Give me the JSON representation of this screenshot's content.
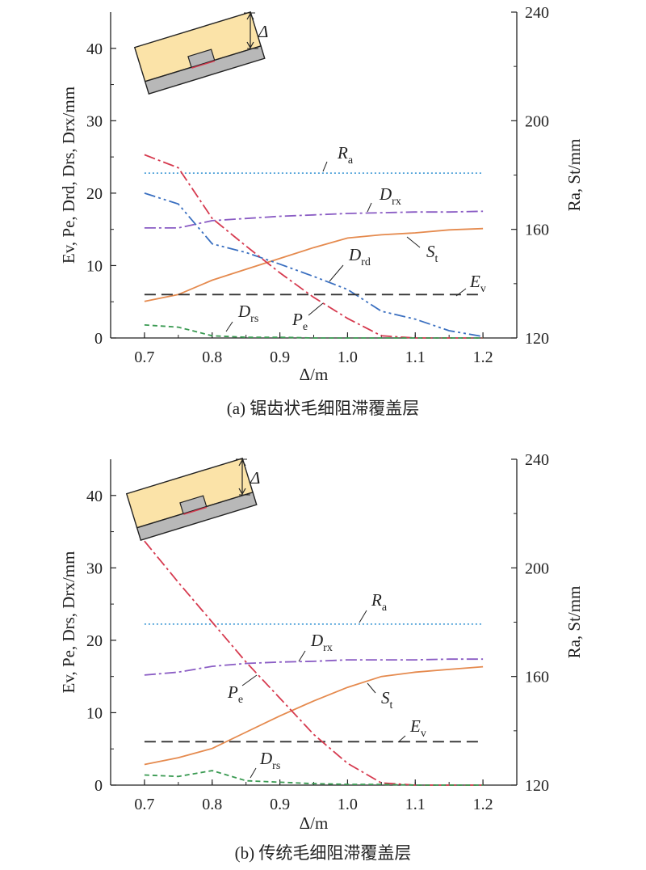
{
  "chart_data": [
    {
      "type": "line",
      "caption": "(a) 锯齿状毛细阻滞覆盖层",
      "xlabel": "Δ/m",
      "ylabel": "Ev, Pe, Drd, Drs, Drx/mm",
      "ylabel_right": "Ra, St/mm",
      "xlim": [
        0.65,
        1.25
      ],
      "ylim": [
        0,
        45
      ],
      "ylim_right": [
        120,
        240
      ],
      "x_ticks": [
        0.7,
        0.8,
        0.9,
        1.0,
        1.1,
        1.2
      ],
      "y_ticks": [
        0,
        10,
        20,
        30,
        40
      ],
      "y_ticks_right": [
        120,
        160,
        200,
        240
      ],
      "series": [
        {
          "name": "Ra",
          "axis": "right",
          "color": "#4a9fd8",
          "dash": "2,3",
          "x": [
            0.7,
            1.2
          ],
          "y": [
            180.7,
            180.7
          ]
        },
        {
          "name": "Drx",
          "axis": "left",
          "color": "#8a5cc4",
          "dash": "14,4,3,4",
          "x": [
            0.7,
            0.75,
            0.8,
            0.85,
            0.9,
            0.95,
            1.0,
            1.05,
            1.1,
            1.15,
            1.2
          ],
          "y": [
            15.2,
            15.2,
            16.2,
            16.5,
            16.8,
            17.0,
            17.2,
            17.3,
            17.4,
            17.4,
            17.5
          ]
        },
        {
          "name": "St",
          "axis": "right",
          "color": "#e58a4e",
          "dash": "",
          "x": [
            0.7,
            0.75,
            0.8,
            0.85,
            0.9,
            0.95,
            1.0,
            1.05,
            1.1,
            1.15,
            1.2
          ],
          "y": [
            133.5,
            136.0,
            141.3,
            145.3,
            149.3,
            153.3,
            156.8,
            158.0,
            158.7,
            159.8,
            160.3
          ]
        },
        {
          "name": "Drd",
          "axis": "left",
          "color": "#3a6fc0",
          "dash": "14,4,3,4,3,4",
          "x": [
            0.7,
            0.75,
            0.8,
            0.85,
            0.9,
            0.95,
            1.0,
            1.05,
            1.1,
            1.15,
            1.2
          ],
          "y": [
            20.0,
            18.5,
            13.0,
            11.8,
            10.2,
            8.5,
            6.7,
            3.7,
            2.6,
            1.0,
            0.2
          ]
        },
        {
          "name": "Ev",
          "axis": "left",
          "color": "#333333",
          "dash": "14,7",
          "x": [
            0.7,
            1.2
          ],
          "y": [
            6.0,
            6.0
          ]
        },
        {
          "name": "Pe",
          "axis": "left",
          "color": "#d63a4f",
          "dash": "14,4,3,4",
          "x": [
            0.7,
            0.75,
            0.8,
            0.85,
            0.9,
            0.95,
            1.0,
            1.05,
            1.1,
            1.15,
            1.2
          ],
          "y": [
            25.3,
            23.5,
            16.5,
            12.7,
            9.0,
            5.6,
            2.7,
            0.3,
            0.0,
            0.0,
            0.0
          ]
        },
        {
          "name": "Drs",
          "axis": "left",
          "color": "#3a9a52",
          "dash": "6,4",
          "x": [
            0.7,
            0.75,
            0.8,
            0.85,
            0.9,
            0.95,
            1.0,
            1.05,
            1.1,
            1.15,
            1.2
          ],
          "y": [
            1.8,
            1.5,
            0.3,
            0.1,
            0.1,
            0.0,
            0.0,
            0.0,
            0.0,
            0.0,
            0.0
          ]
        }
      ],
      "curve_labels": [
        {
          "main": "R",
          "sub": "a"
        },
        {
          "main": "D",
          "sub": "rx"
        },
        {
          "main": "S",
          "sub": "t"
        },
        {
          "main": "D",
          "sub": "rd"
        },
        {
          "main": "E",
          "sub": "v"
        },
        {
          "main": "P",
          "sub": "e"
        },
        {
          "main": "D",
          "sub": "rs"
        }
      ],
      "inset_label": "Δ"
    },
    {
      "type": "line",
      "caption": "(b) 传统毛细阻滞覆盖层",
      "xlabel": "Δ/m",
      "ylabel": "Ev, Pe, Drs, Drx/mm",
      "ylabel_right": "Ra, St/mm",
      "xlim": [
        0.65,
        1.25
      ],
      "ylim": [
        0,
        45
      ],
      "ylim_right": [
        120,
        240
      ],
      "x_ticks": [
        0.7,
        0.8,
        0.9,
        1.0,
        1.1,
        1.2
      ],
      "y_ticks": [
        0,
        10,
        20,
        30,
        40
      ],
      "y_ticks_right": [
        120,
        160,
        200,
        240
      ],
      "series": [
        {
          "name": "Ra",
          "axis": "right",
          "color": "#4a9fd8",
          "dash": "2,3",
          "x": [
            0.7,
            1.2
          ],
          "y": [
            179.3,
            179.3
          ]
        },
        {
          "name": "Drx",
          "axis": "left",
          "color": "#8a5cc4",
          "dash": "14,4,3,4",
          "x": [
            0.7,
            0.75,
            0.8,
            0.85,
            0.9,
            0.95,
            1.0,
            1.05,
            1.1,
            1.15,
            1.2
          ],
          "y": [
            15.2,
            15.6,
            16.4,
            16.8,
            17.0,
            17.1,
            17.3,
            17.3,
            17.3,
            17.4,
            17.4
          ]
        },
        {
          "name": "St",
          "axis": "right",
          "color": "#e58a4e",
          "dash": "",
          "x": [
            0.7,
            0.75,
            0.8,
            0.85,
            0.9,
            0.95,
            1.0,
            1.05,
            1.1,
            1.15,
            1.2
          ],
          "y": [
            127.6,
            130.1,
            133.5,
            139.5,
            145.5,
            151.0,
            156.0,
            160.0,
            161.6,
            162.6,
            163.6
          ]
        },
        {
          "name": "Ev",
          "axis": "left",
          "color": "#333333",
          "dash": "14,7",
          "x": [
            0.7,
            1.2
          ],
          "y": [
            6.0,
            6.0
          ]
        },
        {
          "name": "Pe",
          "axis": "left",
          "color": "#d63a4f",
          "dash": "14,4,3,4",
          "x": [
            0.7,
            0.75,
            0.8,
            0.85,
            0.9,
            0.95,
            1.0,
            1.05,
            1.1,
            1.15,
            1.2
          ],
          "y": [
            33.7,
            28.0,
            22.5,
            17.0,
            12.0,
            7.0,
            3.0,
            0.3,
            0.0,
            0.0,
            0.0
          ]
        },
        {
          "name": "Drs",
          "axis": "left",
          "color": "#3a9a52",
          "dash": "6,4",
          "x": [
            0.7,
            0.75,
            0.8,
            0.85,
            0.9,
            0.95,
            1.0,
            1.05,
            1.1,
            1.15,
            1.2
          ],
          "y": [
            1.4,
            1.2,
            2.0,
            0.6,
            0.4,
            0.2,
            0.1,
            0.1,
            0.0,
            0.0,
            0.0
          ]
        }
      ],
      "curve_labels": [
        {
          "main": "R",
          "sub": "a"
        },
        {
          "main": "D",
          "sub": "rx"
        },
        {
          "main": "P",
          "sub": "e"
        },
        {
          "main": "S",
          "sub": "t"
        },
        {
          "main": "E",
          "sub": "v"
        },
        {
          "main": "D",
          "sub": "rs"
        }
      ],
      "inset_label": "Δ"
    }
  ]
}
